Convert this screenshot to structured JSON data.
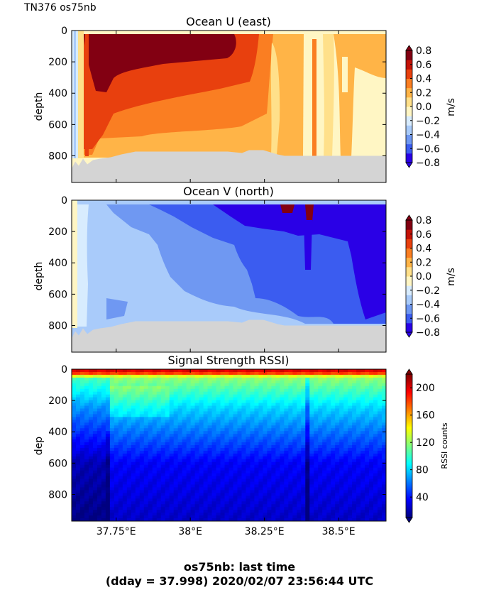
{
  "header": {
    "cruise_label": "TN376 os75nb"
  },
  "footer": {
    "line1": "os75nb: last time",
    "line2": "(dday = 37.998) 2020/02/07 23:56:44 UTC"
  },
  "colors": {
    "missing": "#d4d4d4",
    "diverging": [
      "#2a00e6",
      "#3b5cf0",
      "#6f98f2",
      "#a9cbfa",
      "#d8ecfe",
      "#fff6c4",
      "#ffe08a",
      "#ffb447",
      "#fa7e22",
      "#e8400e",
      "#c41206",
      "#820012"
    ],
    "jet": [
      "#00007f",
      "#0000ff",
      "#007fff",
      "#00ffff",
      "#7fff7f",
      "#ffff00",
      "#ff7f00",
      "#ff0000",
      "#7f0000"
    ]
  },
  "chart_data": [
    {
      "type": "heatmap",
      "title": "Ocean U (east)",
      "ylabel": "depth",
      "colorbar_label": "m/s",
      "colorbar_ticks": [
        "0.8",
        "0.6",
        "0.4",
        "0.2",
        "0.0",
        "−0.2",
        "−0.4",
        "−0.6",
        "−0.8"
      ],
      "colorbar_values": [
        0.8,
        0.6,
        0.4,
        0.2,
        0.0,
        -0.2,
        -0.4,
        -0.6,
        -0.8
      ],
      "xlim": [
        37.6,
        38.66
      ],
      "ylim": [
        970,
        0
      ],
      "x_ticks": [
        37.75,
        38.0,
        38.25,
        38.5
      ],
      "y_tick_labels": [
        "0",
        "200",
        "400",
        "600",
        "800"
      ],
      "y_ticks": [
        0,
        200,
        400,
        600,
        800
      ],
      "bottom_depth_m": 800,
      "sample_profiles": [
        {
          "x": 37.62,
          "depth": [
            50,
            200,
            400,
            600,
            800
          ],
          "u": [
            -0.1,
            0.05,
            0.1,
            0.1,
            0.1
          ]
        },
        {
          "x": 37.75,
          "depth": [
            50,
            200,
            400,
            600,
            800
          ],
          "u": [
            0.85,
            0.85,
            0.6,
            0.6,
            0.35
          ]
        },
        {
          "x": 38.0,
          "depth": [
            50,
            200,
            400,
            600,
            800
          ],
          "u": [
            0.65,
            0.6,
            0.5,
            0.3,
            0.3
          ]
        },
        {
          "x": 38.25,
          "depth": [
            50,
            200,
            400,
            600,
            800
          ],
          "u": [
            0.6,
            0.45,
            0.3,
            0.2,
            0.2
          ]
        },
        {
          "x": 38.5,
          "depth": [
            50,
            200,
            400,
            600,
            800
          ],
          "u": [
            0.3,
            0.2,
            0.2,
            0.2,
            0.2
          ]
        }
      ]
    },
    {
      "type": "heatmap",
      "title": "Ocean V (north)",
      "ylabel": "depth",
      "colorbar_label": "m/s",
      "colorbar_ticks": [
        "0.8",
        "0.6",
        "0.4",
        "0.2",
        "0.0",
        "−0.2",
        "−0.4",
        "−0.6",
        "−0.8"
      ],
      "colorbar_values": [
        0.8,
        0.6,
        0.4,
        0.2,
        0.0,
        -0.2,
        -0.4,
        -0.6,
        -0.8
      ],
      "xlim": [
        37.6,
        38.66
      ],
      "ylim": [
        970,
        0
      ],
      "x_ticks": [
        37.75,
        38.0,
        38.25,
        38.5
      ],
      "y_tick_labels": [
        "0",
        "200",
        "400",
        "600",
        "800"
      ],
      "y_ticks": [
        0,
        200,
        400,
        600,
        800
      ],
      "bottom_depth_m": 800,
      "sample_profiles": [
        {
          "x": 37.62,
          "depth": [
            50,
            200,
            400,
            600,
            800
          ],
          "v": [
            0.1,
            0.1,
            0.1,
            0.1,
            0.1
          ]
        },
        {
          "x": 37.75,
          "depth": [
            50,
            200,
            400,
            600,
            800
          ],
          "v": [
            -0.3,
            -0.3,
            -0.3,
            -0.3,
            -0.2
          ]
        },
        {
          "x": 38.0,
          "depth": [
            50,
            200,
            400,
            600,
            800
          ],
          "v": [
            -0.5,
            -0.5,
            -0.3,
            -0.3,
            -0.3
          ]
        },
        {
          "x": 38.25,
          "depth": [
            50,
            200,
            400,
            600,
            800
          ],
          "v": [
            -0.7,
            -0.5,
            -0.5,
            -0.5,
            -0.5
          ]
        },
        {
          "x": 38.5,
          "depth": [
            50,
            200,
            400,
            600,
            800
          ],
          "v": [
            -0.7,
            -0.7,
            -0.5,
            -0.5,
            -0.5
          ]
        }
      ]
    },
    {
      "type": "heatmap",
      "title": "Signal Strength RSSI)",
      "ylabel": "dep",
      "colorbar_label": "RSSI counts",
      "colorbar_ticks": [
        "200",
        "160",
        "120",
        "80",
        "40"
      ],
      "colorbar_values": [
        200,
        160,
        120,
        80,
        40
      ],
      "colorbar_range": [
        10,
        220
      ],
      "xlim": [
        37.6,
        38.66
      ],
      "ylim": [
        970,
        0
      ],
      "x_ticks": [
        37.75,
        38.0,
        38.25,
        38.5
      ],
      "x_tick_labels": [
        "37.75°E",
        "38°E",
        "38.25°E",
        "38.5°E"
      ],
      "y_tick_labels": [
        "0",
        "200",
        "400",
        "600",
        "800"
      ],
      "y_ticks": [
        0,
        200,
        400,
        600,
        800
      ],
      "sample_profile": {
        "depth": [
          20,
          50,
          150,
          250,
          400,
          600,
          800,
          950
        ],
        "rssi": [
          200,
          120,
          100,
          80,
          60,
          35,
          30,
          25
        ]
      }
    }
  ]
}
